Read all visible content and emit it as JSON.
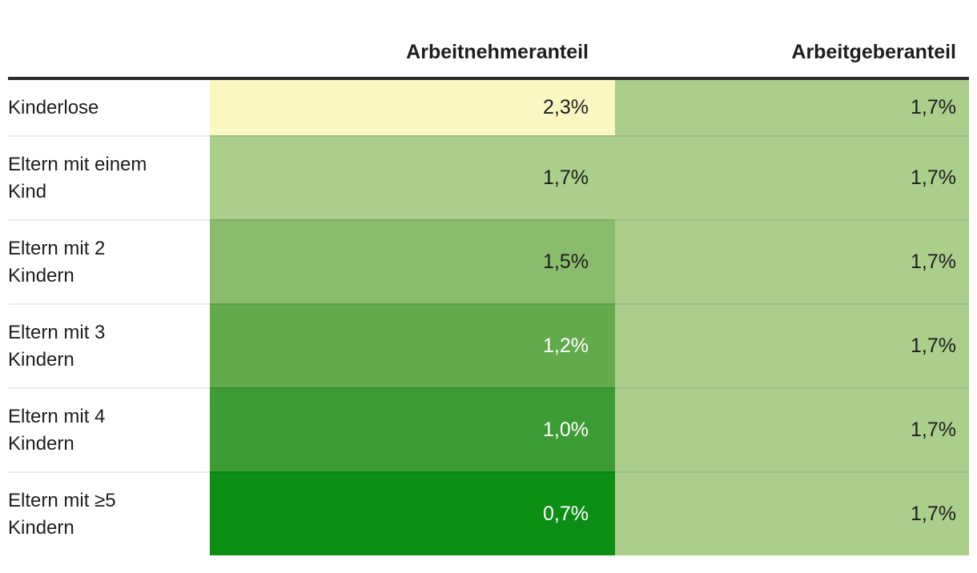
{
  "style": {
    "background": "#ffffff",
    "text_color": "#1d1d1d",
    "rule_color": "#2b2b2b",
    "separator_on_white": "#ececec"
  },
  "table": {
    "header": {
      "employee_col": "Arbeitnehmeranteil",
      "employer_col": "Arbeitgeberanteil"
    },
    "rows": [
      {
        "label": "Kinderlose",
        "label_line1": "Kinderlose",
        "label_line2": "",
        "employee": {
          "value": "2,3%",
          "bg": "#faf7c3",
          "text_color": "#1d1d1d"
        },
        "employer": {
          "value": "1,7%",
          "bg": "#abce8c",
          "text_color": "#1d1d1d"
        }
      },
      {
        "label": "Eltern mit einem Kind",
        "label_line1": "Eltern mit einem",
        "label_line2": "Kind",
        "employee": {
          "value": "1,7%",
          "bg": "#abce8c",
          "text_color": "#1d1d1d"
        },
        "employer": {
          "value": "1,7%",
          "bg": "#abce8c",
          "text_color": "#1d1d1d"
        }
      },
      {
        "label": "Eltern mit 2 Kindern",
        "label_line1": "Eltern mit 2",
        "label_line2": "Kindern",
        "employee": {
          "value": "1,5%",
          "bg": "#8bbc6e",
          "text_color": "#1d1d1d"
        },
        "employer": {
          "value": "1,7%",
          "bg": "#abce8c",
          "text_color": "#1d1d1d"
        }
      },
      {
        "label": "Eltern mit 3 Kindern",
        "label_line1": "Eltern mit 3",
        "label_line2": "Kindern",
        "employee": {
          "value": "1,2%",
          "bg": "#63aa4c",
          "text_color": "#ffffff"
        },
        "employer": {
          "value": "1,7%",
          "bg": "#abce8c",
          "text_color": "#1d1d1d"
        }
      },
      {
        "label": "Eltern mit 4 Kindern",
        "label_line1": "Eltern mit 4",
        "label_line2": "Kindern",
        "employee": {
          "value": "1,0%",
          "bg": "#3d9b35",
          "text_color": "#ffffff"
        },
        "employer": {
          "value": "1,7%",
          "bg": "#abce8c",
          "text_color": "#1d1d1d"
        }
      },
      {
        "label": "Eltern mit ≥5 Kindern",
        "label_line1": "Eltern mit ≥5",
        "label_line2": "Kindern",
        "employee": {
          "value": "0,7%",
          "bg": "#0c8e15",
          "text_color": "#ffffff"
        },
        "employer": {
          "value": "1,7%",
          "bg": "#abce8c",
          "text_color": "#1d1d1d"
        }
      }
    ]
  },
  "chart_data": {
    "type": "heatmap",
    "categories": [
      "Kinderlose",
      "Eltern mit einem Kind",
      "Eltern mit 2 Kindern",
      "Eltern mit 3 Kindern",
      "Eltern mit 4 Kindern",
      "Eltern mit ≥5 Kindern"
    ],
    "series": [
      {
        "name": "Arbeitnehmeranteil",
        "values": [
          2.3,
          1.7,
          1.5,
          1.2,
          1.0,
          0.7
        ]
      },
      {
        "name": "Arbeitgeberanteil",
        "values": [
          1.7,
          1.7,
          1.7,
          1.7,
          1.7,
          1.7
        ]
      }
    ],
    "unit": "%",
    "decimal_separator": ",",
    "value_labels_shown": true,
    "legend_position": "none",
    "grid": false,
    "color_scale": [
      {
        "value": 2.3,
        "color": "#faf7c3"
      },
      {
        "value": 1.7,
        "color": "#abce8c"
      },
      {
        "value": 1.5,
        "color": "#8bbc6e"
      },
      {
        "value": 1.2,
        "color": "#63aa4c"
      },
      {
        "value": 1.0,
        "color": "#3d9b35"
      },
      {
        "value": 0.7,
        "color": "#0c8e15"
      }
    ]
  }
}
